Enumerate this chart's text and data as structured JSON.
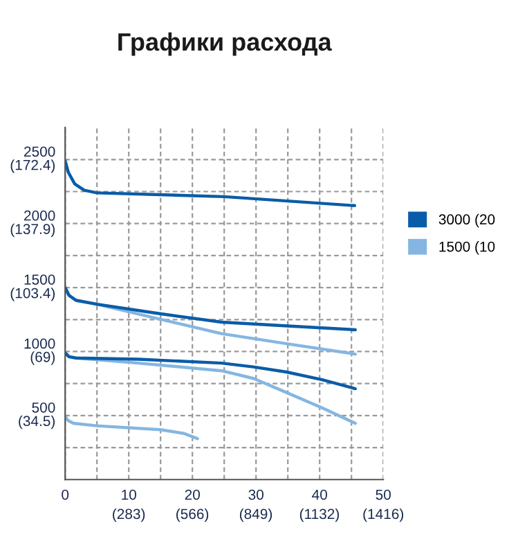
{
  "chart_data": {
    "type": "line",
    "title": "Графики расхода",
    "xlim": [
      0,
      50
    ],
    "ylim": [
      0,
      2750
    ],
    "x2lim": [
      0,
      1416
    ],
    "y2lim": [
      0,
      189.6
    ],
    "xticks": [
      0,
      {
        "value": 5,
        "label": null
      },
      10,
      {
        "value": 15,
        "label": null
      },
      20,
      {
        "value": 25,
        "label": null
      },
      30,
      {
        "value": 35,
        "label": null
      },
      40,
      {
        "value": 45,
        "label": null
      },
      50
    ],
    "x2ticks": [
      {
        "value": 283,
        "label": "(283)"
      },
      {
        "value": 566,
        "label": "(566)"
      },
      {
        "value": 849,
        "label": "(849)"
      },
      {
        "value": 1132,
        "label": "(1132)"
      },
      {
        "value": 1416,
        "label": "(1416)"
      }
    ],
    "yticks": [
      {
        "value": 250,
        "label": null
      },
      500,
      {
        "value": 750,
        "label": null
      },
      1000,
      {
        "value": 1250,
        "label": null
      },
      1500,
      {
        "value": 1750,
        "label": null
      },
      2000,
      {
        "value": 2250,
        "label": null
      },
      2500
    ],
    "y2ticks": [
      {
        "value": 34.5,
        "label": "(34.5)"
      },
      {
        "value": 69,
        "label": "(69)"
      },
      {
        "value": 103.4,
        "label": "(103.4)"
      },
      {
        "value": 137.9,
        "label": "(137.9)"
      },
      {
        "value": 172.4,
        "label": "(172.4)"
      }
    ],
    "grid": true,
    "legend": "right",
    "marker": "none",
    "line_style": "solid",
    "series": [
      {
        "name": "3000 (20",
        "color": "#0a5ca8",
        "x": [
          0,
          0.5,
          1.5,
          3,
          5,
          25,
          45.5
        ],
        "values": [
          2490,
          2400,
          2310,
          2260,
          2240,
          2210,
          2140
        ]
      },
      {
        "name": "1500 (10",
        "color": "#85b6e2",
        "x": [
          0,
          0.6,
          1.7,
          5,
          14.3,
          24.6,
          35,
          45.6
        ],
        "values": [
          1500,
          1440,
          1400,
          1370,
          1260,
          1140,
          1060,
          980
        ]
      },
      {
        "color": "#0a5ca8",
        "x": [
          0,
          0.6,
          1.7,
          5,
          14.3,
          24.6,
          35,
          45.6
        ],
        "values": [
          1500,
          1440,
          1400,
          1370,
          1300,
          1230,
          1200,
          1170
        ]
      },
      {
        "color": "#85b6e2",
        "x": [
          0,
          0.6,
          1.7,
          11.5,
          24.6,
          29.6,
          34.8,
          40.4,
          45.6
        ],
        "values": [
          990,
          960,
          950,
          910,
          850,
          790,
          680,
          560,
          440
        ]
      },
      {
        "color": "#0a5ca8",
        "x": [
          0,
          0.6,
          1.7,
          11.5,
          24.6,
          29.6,
          34.8,
          40.4,
          45.6
        ],
        "values": [
          990,
          960,
          950,
          940,
          910,
          880,
          840,
          780,
          710
        ]
      },
      {
        "color": "#85b6e2",
        "x": [
          0,
          0.5,
          1.3,
          5,
          15,
          18.7,
          20.8
        ],
        "values": [
          490,
          460,
          440,
          420,
          390,
          360,
          320
        ]
      }
    ]
  }
}
